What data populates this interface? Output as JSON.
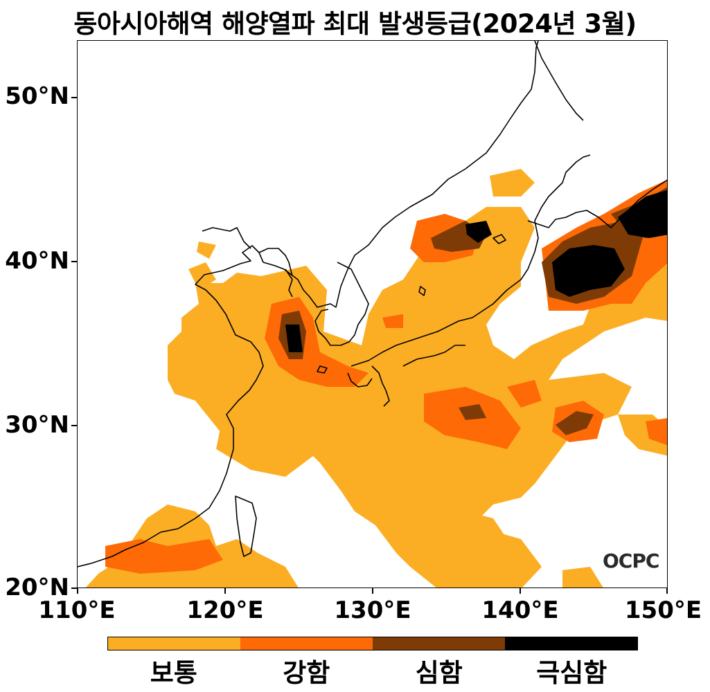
{
  "title": "동아시아해역 해양열파 최대 발생등급(2024년 3월)",
  "map": {
    "lat_labels": [
      "50°N",
      "40°N",
      "30°N",
      "20°N"
    ],
    "lon_labels": [
      "110°E",
      "120°E",
      "130°E",
      "140°E",
      "150°E"
    ],
    "lon_range": [
      110,
      150
    ],
    "lat_range": [
      20,
      53.4
    ],
    "logo_text": "OCPC"
  },
  "legend": {
    "categories": [
      {
        "label": "보통",
        "color": "#FBAE24"
      },
      {
        "label": "강함",
        "color": "#FD6A06"
      },
      {
        "label": "심함",
        "color": "#7E3B06"
      },
      {
        "label": "극심함",
        "color": "#000000"
      }
    ]
  }
}
